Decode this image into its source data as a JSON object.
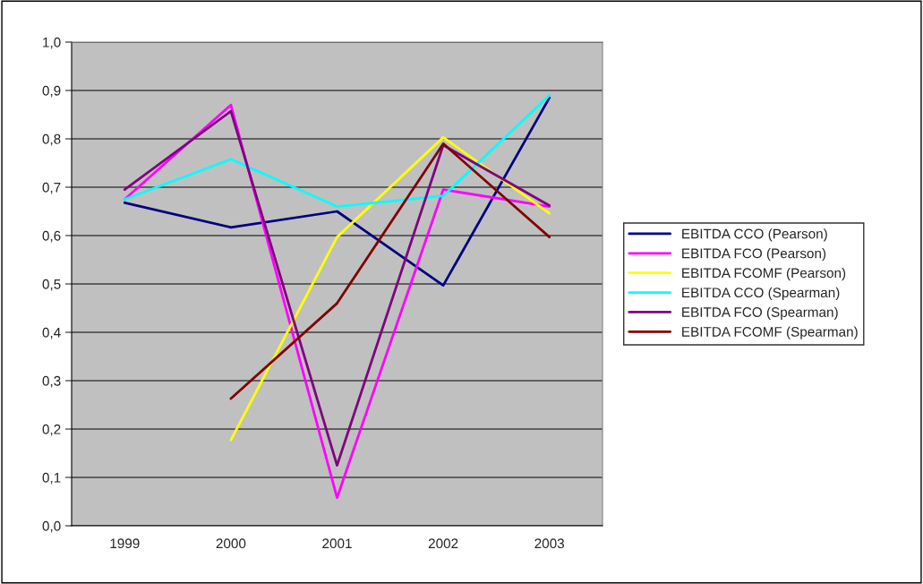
{
  "chart_data": {
    "type": "line",
    "categories": [
      "1999",
      "2000",
      "2001",
      "2002",
      "2003"
    ],
    "series": [
      {
        "name": "EBITDA CCO (Pearson)",
        "color": "#000080",
        "values": [
          0.668,
          0.617,
          0.65,
          0.497,
          0.885
        ]
      },
      {
        "name": "EBITDA FCO (Pearson)",
        "color": "#ff00ff",
        "values": [
          0.675,
          0.87,
          0.058,
          0.695,
          0.66
        ]
      },
      {
        "name": "EBITDA FCOMF (Pearson)",
        "color": "#ffff00",
        "values": [
          null,
          0.177,
          0.597,
          0.803,
          0.646
        ]
      },
      {
        "name": "EBITDA CCO (Spearman)",
        "color": "#00ffff",
        "values": [
          0.675,
          0.758,
          0.66,
          0.682,
          0.89
        ]
      },
      {
        "name": "EBITDA FCO (Spearman)",
        "color": "#800080",
        "values": [
          0.695,
          0.857,
          0.125,
          0.787,
          0.662
        ]
      },
      {
        "name": "EBITDA FCOMF (Spearman)",
        "color": "#800000",
        "values": [
          null,
          0.263,
          0.46,
          0.79,
          0.597
        ]
      }
    ],
    "ylim": [
      0,
      1
    ],
    "yticks": [
      {
        "value": 0,
        "label": "0,0"
      },
      {
        "value": 0.1,
        "label": "0,1"
      },
      {
        "value": 0.2,
        "label": "0,2"
      },
      {
        "value": 0.3,
        "label": "0,3"
      },
      {
        "value": 0.4,
        "label": "0,4"
      },
      {
        "value": 0.5,
        "label": "0,5"
      },
      {
        "value": 0.6,
        "label": "0,6"
      },
      {
        "value": 0.7,
        "label": "0,7"
      },
      {
        "value": 0.8,
        "label": "0,8"
      },
      {
        "value": 0.9,
        "label": "0,9"
      },
      {
        "value": 1,
        "label": "1,0"
      }
    ],
    "grid": "y",
    "legend": "right",
    "marker": "none",
    "line_style": "solid"
  }
}
